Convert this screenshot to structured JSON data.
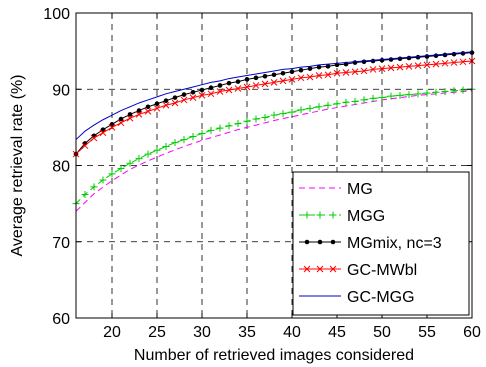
{
  "chart_data": {
    "type": "line",
    "title": "",
    "xlabel": "Number of retrieved images considered",
    "ylabel": "Average retrieval rate (%)",
    "xlim": [
      16,
      60
    ],
    "ylim": [
      60,
      100
    ],
    "xticks": [
      20,
      25,
      30,
      35,
      40,
      45,
      50,
      55,
      60
    ],
    "yticks": [
      60,
      70,
      80,
      90,
      100
    ],
    "grid": true,
    "grid_style": "dashed",
    "legend_position": "bottom-right",
    "series": [
      {
        "name": "MG",
        "color": "#ff00ff",
        "line": "dashed",
        "marker": "none",
        "x": [
          16,
          18,
          20,
          22,
          24,
          26,
          28,
          30,
          32,
          34,
          36,
          38,
          40,
          42,
          44,
          46,
          48,
          50,
          52,
          54,
          56,
          58,
          60
        ],
        "y": [
          74.0,
          76.3,
          78.0,
          79.5,
          80.6,
          81.6,
          82.5,
          83.3,
          84.0,
          84.7,
          85.3,
          85.9,
          86.4,
          86.9,
          87.4,
          87.8,
          88.2,
          88.6,
          88.9,
          89.2,
          89.4,
          89.6,
          89.8
        ]
      },
      {
        "name": "MGG",
        "color": "#00cc00",
        "line": "dashed",
        "marker": "plus",
        "x": [
          16,
          17,
          18,
          19,
          20,
          21,
          22,
          23,
          24,
          25,
          26,
          27,
          28,
          29,
          30,
          31,
          32,
          33,
          34,
          35,
          36,
          37,
          38,
          39,
          40,
          41,
          42,
          43,
          44,
          45,
          46,
          47,
          48,
          49,
          50,
          51,
          52,
          53,
          54,
          55,
          56,
          57,
          58,
          59,
          60
        ],
        "y": [
          75.0,
          76.2,
          77.2,
          78.1,
          78.9,
          79.6,
          80.3,
          80.9,
          81.5,
          82.0,
          82.5,
          83.0,
          83.4,
          83.8,
          84.2,
          84.6,
          84.9,
          85.2,
          85.5,
          85.8,
          86.1,
          86.3,
          86.6,
          86.8,
          87.0,
          87.3,
          87.5,
          87.7,
          87.9,
          88.1,
          88.3,
          88.4,
          88.6,
          88.8,
          88.9,
          89.1,
          89.2,
          89.3,
          89.4,
          89.5,
          89.6,
          89.7,
          89.8,
          89.9,
          90.0
        ]
      },
      {
        "name": "MGmix, nc=3",
        "color": "#000000",
        "line": "solid",
        "marker": "dot",
        "x": [
          16,
          17,
          18,
          19,
          20,
          21,
          22,
          23,
          24,
          25,
          26,
          27,
          28,
          29,
          30,
          31,
          32,
          33,
          34,
          35,
          36,
          37,
          38,
          39,
          40,
          41,
          42,
          43,
          44,
          45,
          46,
          47,
          48,
          49,
          50,
          51,
          52,
          53,
          54,
          55,
          56,
          57,
          58,
          59,
          60
        ],
        "y": [
          81.5,
          82.9,
          83.9,
          84.7,
          85.4,
          86.1,
          86.7,
          87.2,
          87.7,
          88.1,
          88.5,
          88.9,
          89.3,
          89.6,
          89.9,
          90.2,
          90.5,
          90.8,
          91.0,
          91.3,
          91.5,
          91.7,
          91.9,
          92.1,
          92.3,
          92.5,
          92.7,
          92.9,
          93.0,
          93.2,
          93.3,
          93.5,
          93.6,
          93.7,
          93.8,
          93.9,
          94.0,
          94.1,
          94.2,
          94.3,
          94.4,
          94.5,
          94.6,
          94.7,
          94.8
        ]
      },
      {
        "name": "GC-MWbl",
        "color": "#ff0000",
        "line": "solid",
        "marker": "x",
        "x": [
          16,
          17,
          18,
          19,
          20,
          21,
          22,
          23,
          24,
          25,
          26,
          27,
          28,
          29,
          30,
          31,
          32,
          33,
          34,
          35,
          36,
          37,
          38,
          39,
          40,
          41,
          42,
          43,
          44,
          45,
          46,
          47,
          48,
          49,
          50,
          51,
          52,
          53,
          54,
          55,
          56,
          57,
          58,
          59,
          60
        ],
        "y": [
          81.5,
          82.6,
          83.6,
          84.3,
          85.0,
          85.6,
          86.2,
          86.7,
          87.1,
          87.5,
          87.9,
          88.2,
          88.6,
          88.9,
          89.2,
          89.4,
          89.7,
          89.9,
          90.1,
          90.3,
          90.5,
          90.7,
          90.9,
          91.1,
          91.3,
          91.5,
          91.6,
          91.8,
          91.9,
          92.1,
          92.2,
          92.3,
          92.4,
          92.6,
          92.7,
          92.8,
          92.9,
          93.0,
          93.1,
          93.2,
          93.3,
          93.4,
          93.5,
          93.6,
          93.7
        ]
      },
      {
        "name": "GC-MGG",
        "color": "#0000cc",
        "line": "solid",
        "marker": "none",
        "x": [
          16,
          17,
          18,
          19,
          20,
          21,
          22,
          23,
          24,
          25,
          26,
          27,
          28,
          29,
          30,
          31,
          32,
          33,
          34,
          35,
          36,
          37,
          38,
          39,
          40,
          41,
          42,
          43,
          44,
          45,
          46,
          47,
          48,
          49,
          50,
          51,
          52,
          53,
          54,
          55,
          56,
          57,
          58,
          59,
          60
        ],
        "y": [
          83.4,
          84.5,
          85.3,
          86.0,
          86.6,
          87.2,
          87.7,
          88.2,
          88.6,
          89.0,
          89.4,
          89.7,
          90.0,
          90.3,
          90.6,
          90.9,
          91.1,
          91.4,
          91.6,
          91.8,
          92.0,
          92.2,
          92.4,
          92.6,
          92.7,
          92.9,
          93.0,
          93.2,
          93.3,
          93.4,
          93.5,
          93.6,
          93.7,
          93.8,
          93.9,
          94.0,
          94.1,
          94.2,
          94.3,
          94.4,
          94.5,
          94.6,
          94.7,
          94.8,
          94.9
        ]
      }
    ]
  }
}
